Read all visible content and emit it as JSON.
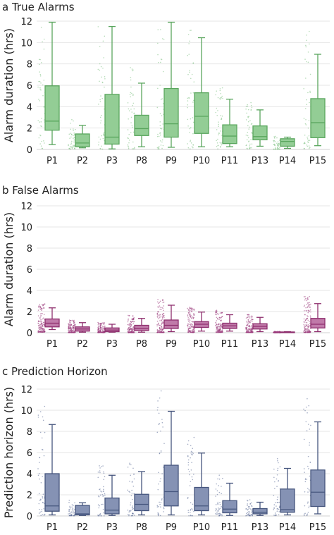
{
  "chart_data": [
    {
      "type": "box",
      "panel_label": "a True Alarms",
      "ylabel": "Alarm duration (hrs)",
      "xlabel": "",
      "ylim": [
        0,
        12
      ],
      "yticks": [
        0,
        2,
        4,
        6,
        8,
        10,
        12
      ],
      "grid": true,
      "color": "#5aa65e",
      "fill": "#93cd95",
      "point_color": "#7cc07f",
      "categories": [
        "P1",
        "P2",
        "P3",
        "P8",
        "P9",
        "P10",
        "P11",
        "P13",
        "P14",
        "P15"
      ],
      "boxes": [
        {
          "category": "P1",
          "min": 0.45,
          "q1": 1.8,
          "median": 2.65,
          "q3": 5.95,
          "max": 11.9
        },
        {
          "category": "P2",
          "min": 0.15,
          "q1": 0.25,
          "median": 0.6,
          "q3": 1.45,
          "max": 2.25
        },
        {
          "category": "P3",
          "min": 0.05,
          "q1": 0.5,
          "median": 1.15,
          "q3": 5.15,
          "max": 11.5
        },
        {
          "category": "P8",
          "min": 0.25,
          "q1": 1.3,
          "median": 1.95,
          "q3": 3.2,
          "max": 6.2
        },
        {
          "category": "P9",
          "min": 0.2,
          "q1": 1.15,
          "median": 2.4,
          "q3": 5.7,
          "max": 11.9
        },
        {
          "category": "P10",
          "min": 0.25,
          "q1": 1.5,
          "median": 3.1,
          "q3": 5.3,
          "max": 10.45
        },
        {
          "category": "P11",
          "min": 0.25,
          "q1": 0.55,
          "median": 1.25,
          "q3": 2.3,
          "max": 4.7
        },
        {
          "category": "P13",
          "min": 0.3,
          "q1": 0.9,
          "median": 1.2,
          "q3": 2.2,
          "max": 3.7
        },
        {
          "category": "P14",
          "min": 0.1,
          "q1": 0.3,
          "median": 0.75,
          "q3": 1.0,
          "max": 1.15
        },
        {
          "category": "P15",
          "min": 0.35,
          "q1": 1.1,
          "median": 2.5,
          "q3": 4.75,
          "max": 8.9
        }
      ]
    },
    {
      "type": "box",
      "panel_label": "b False Alarms",
      "ylabel": "Alarm duration (hrs)",
      "xlabel": "",
      "ylim": [
        0,
        12
      ],
      "yticks": [
        0,
        2,
        4,
        6,
        8,
        10,
        12
      ],
      "grid": true,
      "color": "#8e2f6e",
      "fill": "#c07aa9",
      "point_color": "#9b3a7c",
      "categories": [
        "P1",
        "P2",
        "P3",
        "P8",
        "P9",
        "P10",
        "P11",
        "P13",
        "P14",
        "P15"
      ],
      "boxes": [
        {
          "category": "P1",
          "min": 0.3,
          "q1": 0.55,
          "median": 0.9,
          "q3": 1.3,
          "max": 2.35
        },
        {
          "category": "P2",
          "min": 0.05,
          "q1": 0.15,
          "median": 0.35,
          "q3": 0.55,
          "max": 0.95
        },
        {
          "category": "P3",
          "min": 0.05,
          "q1": 0.1,
          "median": 0.25,
          "q3": 0.45,
          "max": 0.8
        },
        {
          "category": "P8",
          "min": 0.05,
          "q1": 0.2,
          "median": 0.4,
          "q3": 0.7,
          "max": 1.35
        },
        {
          "category": "P9",
          "min": 0.1,
          "q1": 0.4,
          "median": 0.7,
          "q3": 1.2,
          "max": 2.6
        },
        {
          "category": "P10",
          "min": 0.15,
          "q1": 0.5,
          "median": 0.8,
          "q3": 1.05,
          "max": 1.95
        },
        {
          "category": "P11",
          "min": 0.15,
          "q1": 0.4,
          "median": 0.65,
          "q3": 0.9,
          "max": 1.7
        },
        {
          "category": "P13",
          "min": 0.1,
          "q1": 0.35,
          "median": 0.6,
          "q3": 0.85,
          "max": 1.45
        },
        {
          "category": "P14",
          "min": 0.02,
          "q1": 0.03,
          "median": 0.05,
          "q3": 0.07,
          "max": 0.1
        },
        {
          "category": "P15",
          "min": 0.1,
          "q1": 0.45,
          "median": 0.8,
          "q3": 1.35,
          "max": 2.75
        }
      ]
    },
    {
      "type": "box",
      "panel_label": "c Prediction Horizon",
      "ylabel": "Prediction horizon (hrs)",
      "xlabel": "",
      "ylim": [
        0,
        12
      ],
      "yticks": [
        0,
        2,
        4,
        6,
        8,
        10,
        12
      ],
      "grid": true,
      "color": "#46567e",
      "fill": "#8592b4",
      "point_color": "#5a6a96",
      "categories": [
        "P1",
        "P2",
        "P3",
        "P8",
        "P9",
        "P10",
        "P11",
        "P13",
        "P14",
        "P15"
      ],
      "boxes": [
        {
          "category": "P1",
          "min": 0.1,
          "q1": 0.45,
          "median": 0.95,
          "q3": 4.0,
          "max": 8.65
        },
        {
          "category": "P2",
          "min": 0.05,
          "q1": 0.1,
          "median": 0.2,
          "q3": 1.0,
          "max": 1.25
        },
        {
          "category": "P3",
          "min": 0.05,
          "q1": 0.2,
          "median": 0.55,
          "q3": 1.7,
          "max": 3.85
        },
        {
          "category": "P8",
          "min": 0.1,
          "q1": 0.5,
          "median": 1.1,
          "q3": 2.05,
          "max": 4.2
        },
        {
          "category": "P9",
          "min": 0.1,
          "q1": 0.95,
          "median": 2.3,
          "q3": 4.8,
          "max": 9.9
        },
        {
          "category": "P10",
          "min": 0.1,
          "q1": 0.5,
          "median": 0.95,
          "q3": 2.7,
          "max": 5.95
        },
        {
          "category": "P11",
          "min": 0.05,
          "q1": 0.3,
          "median": 0.65,
          "q3": 1.45,
          "max": 3.1
        },
        {
          "category": "P13",
          "min": 0.05,
          "q1": 0.2,
          "median": 0.35,
          "q3": 0.7,
          "max": 1.3
        },
        {
          "category": "P14",
          "min": 0.1,
          "q1": 0.35,
          "median": 0.6,
          "q3": 2.55,
          "max": 4.5
        },
        {
          "category": "P15",
          "min": 0.2,
          "q1": 0.9,
          "median": 2.25,
          "q3": 4.35,
          "max": 8.9
        }
      ]
    }
  ]
}
